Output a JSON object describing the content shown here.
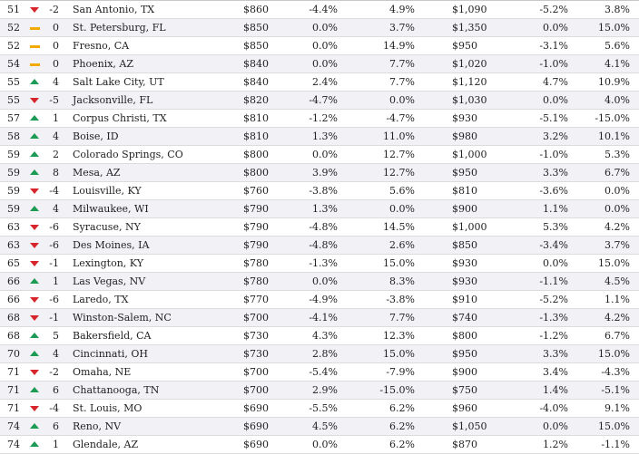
{
  "icons": {
    "up": "triangle-up-icon",
    "down": "triangle-down-icon",
    "flat": "dash-icon"
  },
  "colors": {
    "up": "#1d9a53",
    "down": "#d6262c",
    "flat": "#f2a900",
    "alt_row": "#f1f1f6"
  },
  "rows": [
    {
      "rank": "51",
      "dir": "down",
      "change": "-2",
      "city": "San Antonio, TX",
      "rent": "$860",
      "mom": "-4.4%",
      "yoy": "4.9%",
      "rent2": "$1,090",
      "mom2": "-5.2%",
      "yoy2": "3.8%"
    },
    {
      "rank": "52",
      "dir": "flat",
      "change": "0",
      "city": "St. Petersburg, FL",
      "rent": "$850",
      "mom": "0.0%",
      "yoy": "3.7%",
      "rent2": "$1,350",
      "mom2": "0.0%",
      "yoy2": "15.0%"
    },
    {
      "rank": "52",
      "dir": "flat",
      "change": "0",
      "city": "Fresno, CA",
      "rent": "$850",
      "mom": "0.0%",
      "yoy": "14.9%",
      "rent2": "$950",
      "mom2": "-3.1%",
      "yoy2": "5.6%"
    },
    {
      "rank": "54",
      "dir": "flat",
      "change": "0",
      "city": "Phoenix, AZ",
      "rent": "$840",
      "mom": "0.0%",
      "yoy": "7.7%",
      "rent2": "$1,020",
      "mom2": "-1.0%",
      "yoy2": "4.1%"
    },
    {
      "rank": "55",
      "dir": "up",
      "change": "4",
      "city": "Salt Lake City, UT",
      "rent": "$840",
      "mom": "2.4%",
      "yoy": "7.7%",
      "rent2": "$1,120",
      "mom2": "4.7%",
      "yoy2": "10.9%"
    },
    {
      "rank": "55",
      "dir": "down",
      "change": "-5",
      "city": "Jacksonville, FL",
      "rent": "$820",
      "mom": "-4.7%",
      "yoy": "0.0%",
      "rent2": "$1,030",
      "mom2": "0.0%",
      "yoy2": "4.0%"
    },
    {
      "rank": "57",
      "dir": "up",
      "change": "1",
      "city": "Corpus Christi, TX",
      "rent": "$810",
      "mom": "-1.2%",
      "yoy": "-4.7%",
      "rent2": "$930",
      "mom2": "-5.1%",
      "yoy2": "-15.0%"
    },
    {
      "rank": "58",
      "dir": "up",
      "change": "4",
      "city": "Boise, ID",
      "rent": "$810",
      "mom": "1.3%",
      "yoy": "11.0%",
      "rent2": "$980",
      "mom2": "3.2%",
      "yoy2": "10.1%"
    },
    {
      "rank": "59",
      "dir": "up",
      "change": "2",
      "city": "Colorado Springs, CO",
      "rent": "$800",
      "mom": "0.0%",
      "yoy": "12.7%",
      "rent2": "$1,000",
      "mom2": "-1.0%",
      "yoy2": "5.3%"
    },
    {
      "rank": "59",
      "dir": "up",
      "change": "8",
      "city": "Mesa, AZ",
      "rent": "$800",
      "mom": "3.9%",
      "yoy": "12.7%",
      "rent2": "$950",
      "mom2": "3.3%",
      "yoy2": "6.7%"
    },
    {
      "rank": "59",
      "dir": "down",
      "change": "-4",
      "city": "Louisville, KY",
      "rent": "$760",
      "mom": "-3.8%",
      "yoy": "5.6%",
      "rent2": "$810",
      "mom2": "-3.6%",
      "yoy2": "0.0%"
    },
    {
      "rank": "59",
      "dir": "up",
      "change": "4",
      "city": "Milwaukee, WI",
      "rent": "$790",
      "mom": "1.3%",
      "yoy": "0.0%",
      "rent2": "$900",
      "mom2": "1.1%",
      "yoy2": "0.0%"
    },
    {
      "rank": "63",
      "dir": "down",
      "change": "-6",
      "city": "Syracuse, NY",
      "rent": "$790",
      "mom": "-4.8%",
      "yoy": "14.5%",
      "rent2": "$1,000",
      "mom2": "5.3%",
      "yoy2": "4.2%"
    },
    {
      "rank": "63",
      "dir": "down",
      "change": "-6",
      "city": "Des Moines, IA",
      "rent": "$790",
      "mom": "-4.8%",
      "yoy": "2.6%",
      "rent2": "$850",
      "mom2": "-3.4%",
      "yoy2": "3.7%"
    },
    {
      "rank": "65",
      "dir": "down",
      "change": "-1",
      "city": "Lexington, KY",
      "rent": "$780",
      "mom": "-1.3%",
      "yoy": "15.0%",
      "rent2": "$930",
      "mom2": "0.0%",
      "yoy2": "15.0%"
    },
    {
      "rank": "66",
      "dir": "up",
      "change": "1",
      "city": "Las Vegas, NV",
      "rent": "$780",
      "mom": "0.0%",
      "yoy": "8.3%",
      "rent2": "$930",
      "mom2": "-1.1%",
      "yoy2": "4.5%"
    },
    {
      "rank": "66",
      "dir": "down",
      "change": "-6",
      "city": "Laredo, TX",
      "rent": "$770",
      "mom": "-4.9%",
      "yoy": "-3.8%",
      "rent2": "$910",
      "mom2": "-5.2%",
      "yoy2": "1.1%"
    },
    {
      "rank": "68",
      "dir": "down",
      "change": "-1",
      "city": "Winston-Salem, NC",
      "rent": "$700",
      "mom": "-4.1%",
      "yoy": "7.7%",
      "rent2": "$740",
      "mom2": "-1.3%",
      "yoy2": "4.2%"
    },
    {
      "rank": "68",
      "dir": "up",
      "change": "5",
      "city": "Bakersfield, CA",
      "rent": "$730",
      "mom": "4.3%",
      "yoy": "12.3%",
      "rent2": "$800",
      "mom2": "-1.2%",
      "yoy2": "6.7%"
    },
    {
      "rank": "70",
      "dir": "up",
      "change": "4",
      "city": "Cincinnati, OH",
      "rent": "$730",
      "mom": "2.8%",
      "yoy": "15.0%",
      "rent2": "$950",
      "mom2": "3.3%",
      "yoy2": "15.0%"
    },
    {
      "rank": "71",
      "dir": "down",
      "change": "-2",
      "city": "Omaha, NE",
      "rent": "$700",
      "mom": "-5.4%",
      "yoy": "-7.9%",
      "rent2": "$900",
      "mom2": "3.4%",
      "yoy2": "-4.3%"
    },
    {
      "rank": "71",
      "dir": "up",
      "change": "6",
      "city": "Chattanooga, TN",
      "rent": "$700",
      "mom": "2.9%",
      "yoy": "-15.0%",
      "rent2": "$750",
      "mom2": "1.4%",
      "yoy2": "-5.1%"
    },
    {
      "rank": "71",
      "dir": "down",
      "change": "-4",
      "city": "St. Louis, MO",
      "rent": "$690",
      "mom": "-5.5%",
      "yoy": "6.2%",
      "rent2": "$960",
      "mom2": "-4.0%",
      "yoy2": "9.1%"
    },
    {
      "rank": "74",
      "dir": "up",
      "change": "6",
      "city": "Reno, NV",
      "rent": "$690",
      "mom": "4.5%",
      "yoy": "6.2%",
      "rent2": "$1,050",
      "mom2": "0.0%",
      "yoy2": "15.0%"
    },
    {
      "rank": "74",
      "dir": "up",
      "change": "1",
      "city": "Glendale, AZ",
      "rent": "$690",
      "mom": "0.0%",
      "yoy": "6.2%",
      "rent2": "$870",
      "mom2": "1.2%",
      "yoy2": "-1.1%"
    }
  ]
}
